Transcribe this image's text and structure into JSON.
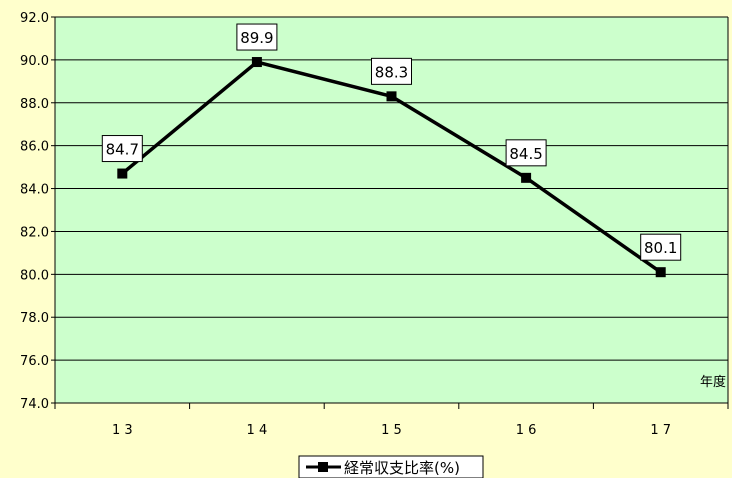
{
  "chart_data": {
    "type": "line",
    "categories": [
      "13",
      "14",
      "15",
      "16",
      "17"
    ],
    "series": [
      {
        "name": "経常収支比率(%)",
        "values": [
          84.7,
          89.9,
          88.3,
          84.5,
          80.1
        ]
      }
    ],
    "data_labels": [
      "84.7",
      "89.9",
      "88.3",
      "84.5",
      "80.1"
    ],
    "y_ticks": [
      "74.0",
      "76.0",
      "78.0",
      "80.0",
      "82.0",
      "84.0",
      "86.0",
      "88.0",
      "90.0",
      "92.0"
    ],
    "x_ticks": [
      "1 3",
      "1 4",
      "1 5",
      "1 6",
      "1 7"
    ],
    "xlabel": "年度",
    "ylabel": "",
    "ylim": [
      74,
      92
    ],
    "grid": true,
    "legend": "bottom",
    "colors": {
      "plot_bg": "#ccffcc",
      "page_bg": "#ffffcc",
      "line": "#000000",
      "grid": "#000000"
    }
  }
}
